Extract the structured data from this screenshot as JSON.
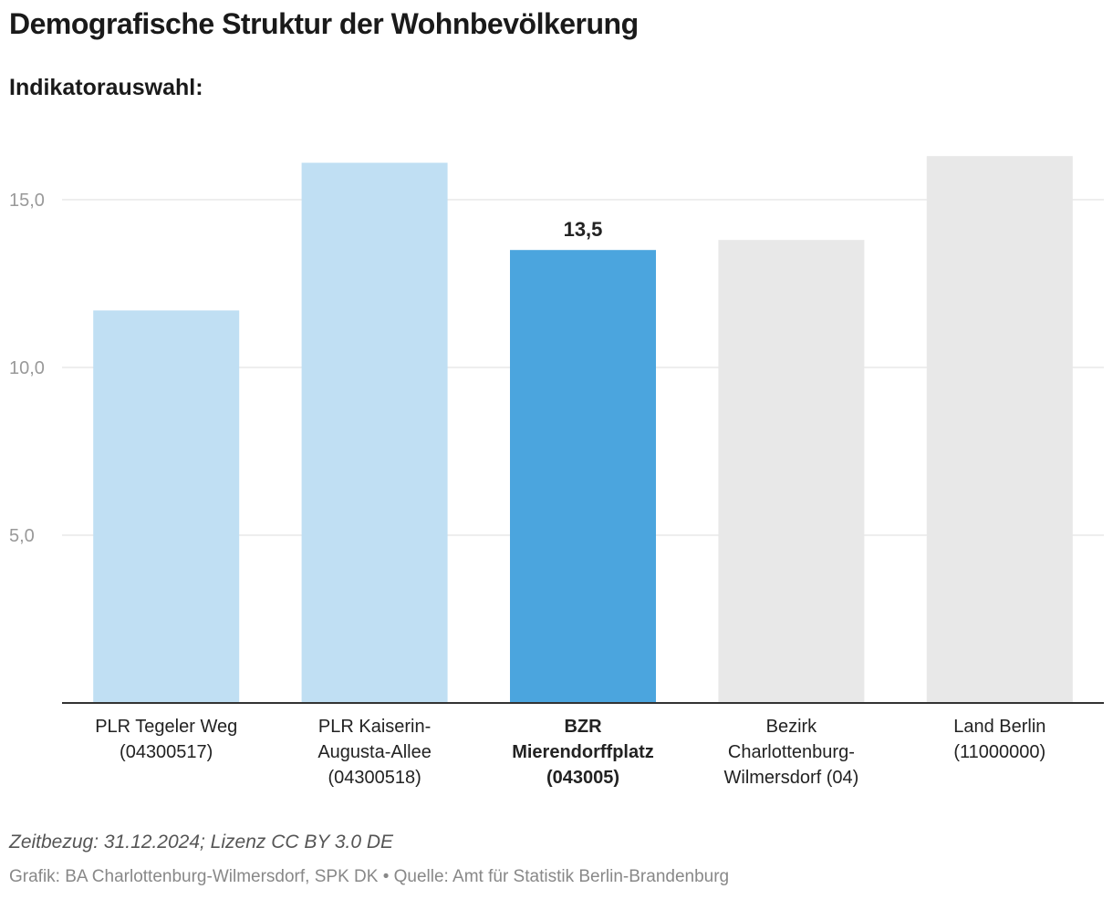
{
  "header": {
    "title": "Demografische Struktur der Wohnbevölkerung",
    "indicator_label": "Indikatorauswahl:"
  },
  "chart_data": {
    "type": "bar",
    "title": "Demografische Struktur der Wohnbevölkerung",
    "xlabel": "",
    "ylabel": "",
    "ylim": [
      0,
      16.5
    ],
    "yticks": [
      5,
      10,
      15
    ],
    "ytick_labels": [
      "5,0",
      "10,0",
      "15,0"
    ],
    "grid": true,
    "categories": [
      [
        "PLR Tegeler Weg",
        "(04300517)"
      ],
      [
        "PLR Kaiserin-",
        "Augusta-Allee",
        "(04300518)"
      ],
      [
        "BZR",
        "Mierendorffplatz",
        "(043005)"
      ],
      [
        "Bezirk",
        "Charlottenburg-",
        "Wilmersdorf (04)"
      ],
      [
        "Land Berlin",
        "(11000000)"
      ]
    ],
    "values": [
      11.7,
      16.1,
      13.5,
      13.8,
      16.3
    ],
    "highlight_index": 2,
    "highlight_label": "13,5",
    "colors": [
      "#c0dff3",
      "#c0dff3",
      "#4ba5de",
      "#e8e8e8",
      "#e8e8e8"
    ]
  },
  "footer": {
    "note": "Zeitbezug: 31.12.2024; Lizenz CC BY 3.0 DE",
    "source": "Grafik: BA Charlottenburg-Wilmersdorf, SPK DK • Quelle: Amt für Statistik Berlin-Brandenburg"
  }
}
